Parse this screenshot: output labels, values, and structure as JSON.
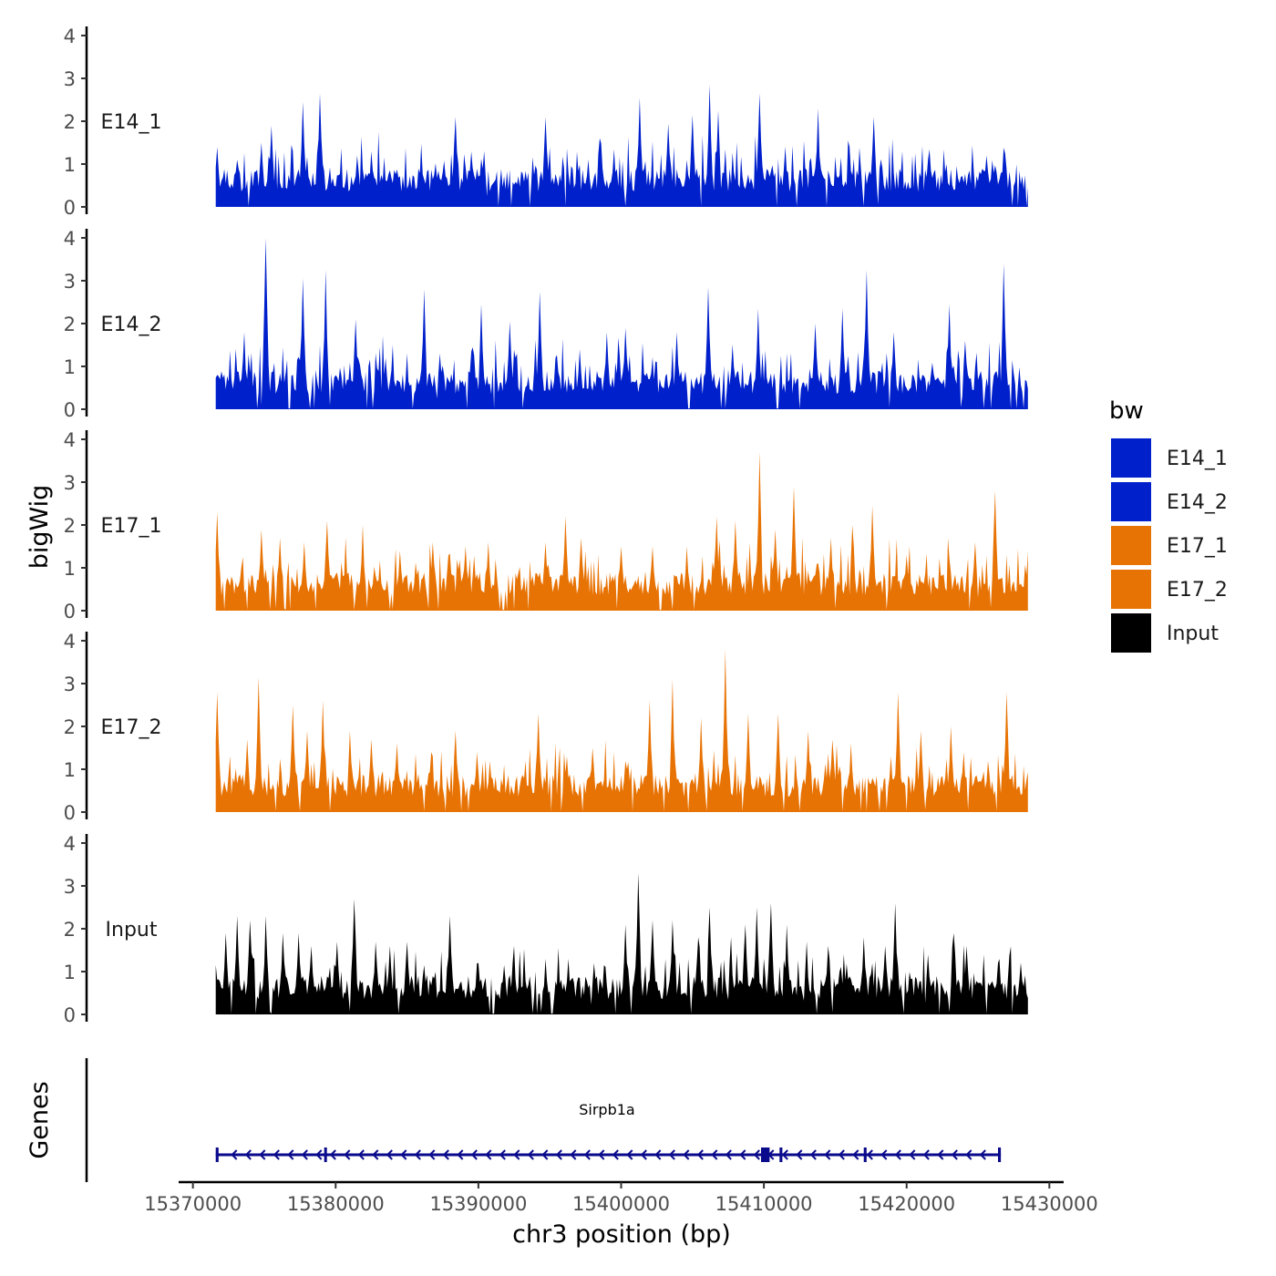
{
  "chart_data": {
    "type": "area",
    "chromosome": "chr3",
    "xlabel": "chr3 position (bp)",
    "ylabel": "bigWig",
    "genes_label": "Genes",
    "xlim": [
      15369000,
      15431000
    ],
    "ylim": [
      0,
      4
    ],
    "data_range": [
      15371600,
      15428500
    ],
    "x_ticks": [
      15370000,
      15380000,
      15390000,
      15400000,
      15410000,
      15420000,
      15430000
    ],
    "y_ticks": [
      0,
      1,
      2,
      3,
      4
    ],
    "legend": {
      "title": "bw",
      "entries": [
        {
          "name": "E14_1",
          "color": "#0020CC"
        },
        {
          "name": "E14_2",
          "color": "#0020CC"
        },
        {
          "name": "E17_1",
          "color": "#E87305"
        },
        {
          "name": "E17_2",
          "color": "#E87305"
        },
        {
          "name": "Input",
          "color": "#000000"
        }
      ]
    },
    "series": [
      {
        "name": "E14_1",
        "color": "#0020CC",
        "peaks": [
          {
            "x": 15371700,
            "y": 1.4
          },
          {
            "x": 15374800,
            "y": 1.5
          },
          {
            "x": 15375500,
            "y": 1.9
          },
          {
            "x": 15377700,
            "y": 2.45
          },
          {
            "x": 15378900,
            "y": 2.65
          },
          {
            "x": 15381500,
            "y": 1.2
          },
          {
            "x": 15382500,
            "y": 1.3
          },
          {
            "x": 15388400,
            "y": 2.1
          },
          {
            "x": 15389500,
            "y": 1.3
          },
          {
            "x": 15390400,
            "y": 1.3
          },
          {
            "x": 15394700,
            "y": 2.1
          },
          {
            "x": 15396500,
            "y": 0.95
          },
          {
            "x": 15399500,
            "y": 1.35
          },
          {
            "x": 15401300,
            "y": 2.55
          },
          {
            "x": 15403300,
            "y": 1.95
          },
          {
            "x": 15405000,
            "y": 2.15
          },
          {
            "x": 15406200,
            "y": 2.85
          },
          {
            "x": 15406800,
            "y": 2.25
          },
          {
            "x": 15409700,
            "y": 2.65
          },
          {
            "x": 15413800,
            "y": 2.3
          },
          {
            "x": 15416000,
            "y": 1.4
          },
          {
            "x": 15417700,
            "y": 2.1
          },
          {
            "x": 15421500,
            "y": 1.1
          },
          {
            "x": 15425600,
            "y": 1.2
          },
          {
            "x": 15426900,
            "y": 1.25
          }
        ]
      },
      {
        "name": "E14_2",
        "color": "#0020CC",
        "peaks": [
          {
            "x": 15371900,
            "y": 0.7
          },
          {
            "x": 15373600,
            "y": 1.8
          },
          {
            "x": 15375100,
            "y": 4.0
          },
          {
            "x": 15377700,
            "y": 3.05
          },
          {
            "x": 15379300,
            "y": 3.25
          },
          {
            "x": 15381400,
            "y": 2.1
          },
          {
            "x": 15383500,
            "y": 1.2
          },
          {
            "x": 15386200,
            "y": 2.8
          },
          {
            "x": 15387300,
            "y": 1.3
          },
          {
            "x": 15390200,
            "y": 2.45
          },
          {
            "x": 15392200,
            "y": 2.05
          },
          {
            "x": 15394300,
            "y": 2.75
          },
          {
            "x": 15397100,
            "y": 1.4
          },
          {
            "x": 15399000,
            "y": 1.8
          },
          {
            "x": 15400300,
            "y": 1.9
          },
          {
            "x": 15403900,
            "y": 1.8
          },
          {
            "x": 15406100,
            "y": 2.85
          },
          {
            "x": 15409600,
            "y": 2.35
          },
          {
            "x": 15413600,
            "y": 2.0
          },
          {
            "x": 15415500,
            "y": 2.35
          },
          {
            "x": 15417200,
            "y": 3.25
          },
          {
            "x": 15419100,
            "y": 1.8
          },
          {
            "x": 15423000,
            "y": 2.45
          },
          {
            "x": 15424100,
            "y": 1.6
          },
          {
            "x": 15426800,
            "y": 3.4
          }
        ]
      },
      {
        "name": "E17_1",
        "color": "#E87305",
        "peaks": [
          {
            "x": 15371700,
            "y": 2.3
          },
          {
            "x": 15374800,
            "y": 1.9
          },
          {
            "x": 15376100,
            "y": 1.7
          },
          {
            "x": 15377800,
            "y": 1.6
          },
          {
            "x": 15379400,
            "y": 2.1
          },
          {
            "x": 15381900,
            "y": 2.0
          },
          {
            "x": 15384500,
            "y": 1.4
          },
          {
            "x": 15386800,
            "y": 1.6
          },
          {
            "x": 15389100,
            "y": 1.5
          },
          {
            "x": 15390700,
            "y": 1.6
          },
          {
            "x": 15394700,
            "y": 1.6
          },
          {
            "x": 15396100,
            "y": 2.2
          },
          {
            "x": 15397200,
            "y": 1.7
          },
          {
            "x": 15400000,
            "y": 1.5
          },
          {
            "x": 15402200,
            "y": 1.5
          },
          {
            "x": 15404600,
            "y": 1.5
          },
          {
            "x": 15406700,
            "y": 2.2
          },
          {
            "x": 15408000,
            "y": 2.1
          },
          {
            "x": 15409700,
            "y": 3.7
          },
          {
            "x": 15410800,
            "y": 1.9
          },
          {
            "x": 15412100,
            "y": 2.9
          },
          {
            "x": 15414700,
            "y": 1.7
          },
          {
            "x": 15416200,
            "y": 2.0
          },
          {
            "x": 15417600,
            "y": 2.45
          },
          {
            "x": 15420000,
            "y": 1.3
          },
          {
            "x": 15423000,
            "y": 1.2
          },
          {
            "x": 15424800,
            "y": 1.6
          },
          {
            "x": 15426200,
            "y": 2.8
          }
        ]
      },
      {
        "name": "E17_2",
        "color": "#E87305",
        "peaks": [
          {
            "x": 15371700,
            "y": 2.8
          },
          {
            "x": 15373800,
            "y": 1.7
          },
          {
            "x": 15374600,
            "y": 3.15
          },
          {
            "x": 15377000,
            "y": 2.5
          },
          {
            "x": 15378000,
            "y": 1.9
          },
          {
            "x": 15379100,
            "y": 2.6
          },
          {
            "x": 15381000,
            "y": 1.9
          },
          {
            "x": 15382500,
            "y": 1.7
          },
          {
            "x": 15384300,
            "y": 1.6
          },
          {
            "x": 15386700,
            "y": 1.4
          },
          {
            "x": 15388400,
            "y": 1.9
          },
          {
            "x": 15389900,
            "y": 1.4
          },
          {
            "x": 15393300,
            "y": 1.2
          },
          {
            "x": 15394200,
            "y": 2.3
          },
          {
            "x": 15396200,
            "y": 1.3
          },
          {
            "x": 15398000,
            "y": 1.5
          },
          {
            "x": 15400300,
            "y": 1.2
          },
          {
            "x": 15402000,
            "y": 2.6
          },
          {
            "x": 15403600,
            "y": 3.1
          },
          {
            "x": 15405600,
            "y": 2.2
          },
          {
            "x": 15407300,
            "y": 3.8
          },
          {
            "x": 15408900,
            "y": 2.3
          },
          {
            "x": 15411000,
            "y": 2.3
          },
          {
            "x": 15413100,
            "y": 1.9
          },
          {
            "x": 15414800,
            "y": 1.7
          },
          {
            "x": 15416100,
            "y": 1.6
          },
          {
            "x": 15418900,
            "y": 1.3
          },
          {
            "x": 15419400,
            "y": 2.8
          },
          {
            "x": 15421000,
            "y": 1.9
          },
          {
            "x": 15423100,
            "y": 2.0
          },
          {
            "x": 15424000,
            "y": 1.4
          },
          {
            "x": 15427000,
            "y": 2.8
          }
        ]
      },
      {
        "name": "Input",
        "color": "#000000",
        "peaks": [
          {
            "x": 15372300,
            "y": 1.9
          },
          {
            "x": 15373100,
            "y": 2.3
          },
          {
            "x": 15374000,
            "y": 2.2
          },
          {
            "x": 15375100,
            "y": 2.3
          },
          {
            "x": 15376300,
            "y": 1.9
          },
          {
            "x": 15377400,
            "y": 1.9
          },
          {
            "x": 15378300,
            "y": 1.6
          },
          {
            "x": 15380100,
            "y": 1.7
          },
          {
            "x": 15381300,
            "y": 2.7
          },
          {
            "x": 15382800,
            "y": 1.7
          },
          {
            "x": 15383800,
            "y": 1.6
          },
          {
            "x": 15385000,
            "y": 1.7
          },
          {
            "x": 15388000,
            "y": 2.3
          },
          {
            "x": 15390000,
            "y": 1.2
          },
          {
            "x": 15392500,
            "y": 1.6
          },
          {
            "x": 15394700,
            "y": 1.3
          },
          {
            "x": 15396300,
            "y": 1.3
          },
          {
            "x": 15398100,
            "y": 1.2
          },
          {
            "x": 15400300,
            "y": 2.1
          },
          {
            "x": 15401200,
            "y": 3.3
          },
          {
            "x": 15402200,
            "y": 2.2
          },
          {
            "x": 15403600,
            "y": 2.2
          },
          {
            "x": 15405400,
            "y": 1.8
          },
          {
            "x": 15406200,
            "y": 2.5
          },
          {
            "x": 15407700,
            "y": 1.8
          },
          {
            "x": 15408700,
            "y": 2.1
          },
          {
            "x": 15409500,
            "y": 2.5
          },
          {
            "x": 15410500,
            "y": 2.6
          },
          {
            "x": 15411600,
            "y": 2.1
          },
          {
            "x": 15413000,
            "y": 1.7
          },
          {
            "x": 15414500,
            "y": 1.6
          },
          {
            "x": 15417000,
            "y": 1.8
          },
          {
            "x": 15418500,
            "y": 1.6
          },
          {
            "x": 15419200,
            "y": 2.6
          },
          {
            "x": 15421500,
            "y": 1.4
          },
          {
            "x": 15423300,
            "y": 1.9
          },
          {
            "x": 15424200,
            "y": 1.6
          },
          {
            "x": 15426400,
            "y": 1.2
          }
        ]
      }
    ],
    "gene": {
      "name": "Sirpb1a",
      "strand": "-",
      "start": 15371600,
      "end": 15426600,
      "color": "#0A0A8C",
      "exons": [
        {
          "start": 15371600,
          "end": 15371800
        },
        {
          "start": 15379200,
          "end": 15379250
        },
        {
          "start": 15409800,
          "end": 15410400
        },
        {
          "start": 15411100,
          "end": 15411300
        },
        {
          "start": 15417000,
          "end": 15417200
        },
        {
          "start": 15426400,
          "end": 15426600
        }
      ]
    }
  }
}
